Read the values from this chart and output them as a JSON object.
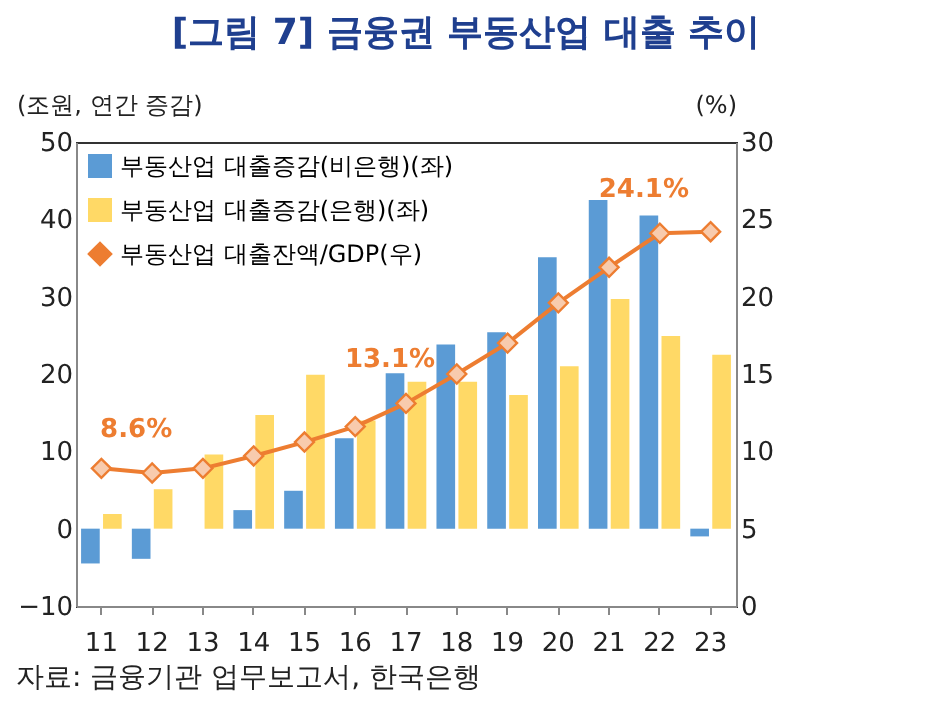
{
  "chart_data": {
    "type": "bar",
    "title": "[그림 7] 금융권 부동산업 대출 추이",
    "ylabel": "(조원, 연간 증감)",
    "y2label": "(%)",
    "annotations": [
      "자료: 금융기관 업무보고서, 한국은행"
    ],
    "categories": [
      "11",
      "12",
      "13",
      "14",
      "15",
      "16",
      "17",
      "18",
      "19",
      "20",
      "21",
      "22",
      "23"
    ],
    "series": [
      {
        "name": "부동산업 대출증감(비은행)(좌)",
        "color": "#5b9bd5",
        "values": [
          -4.5,
          -3.9,
          0,
          2.4,
          4.9,
          11.7,
          20.1,
          23.8,
          25.4,
          35.1,
          42.5,
          40.5,
          -1
        ]
      },
      {
        "name": "부동산업 대출증감(은행)(좌)",
        "color": "#ffd966",
        "values": [
          1.9,
          5.1,
          9.6,
          14.7,
          19.9,
          14,
          19,
          19,
          17.3,
          21,
          29.7,
          24.9,
          22.5
        ]
      },
      {
        "name": "부동산업 대출잔액/GDP(우)",
        "type": "line",
        "axis": "y2",
        "color": "#ed7d31",
        "marker": "diamond",
        "line_style": "solid",
        "values": [
          8.9,
          8.6,
          8.9,
          9.7,
          10.6,
          11.6,
          13.1,
          15,
          17,
          19.6,
          21.9,
          24.1,
          24.2
        ],
        "value_labels": [
          null,
          "8.6%",
          null,
          null,
          null,
          null,
          "13.1%",
          null,
          null,
          null,
          null,
          "24.1%",
          null
        ]
      }
    ],
    "ylim": [
      -10,
      50
    ],
    "yticks": [
      -10,
      0,
      10,
      20,
      30,
      40,
      50
    ],
    "y2lim": [
      0,
      30
    ],
    "y2ticks": [
      0,
      5,
      10,
      15,
      20,
      25,
      30
    ],
    "grid": false,
    "legend": "top left"
  }
}
